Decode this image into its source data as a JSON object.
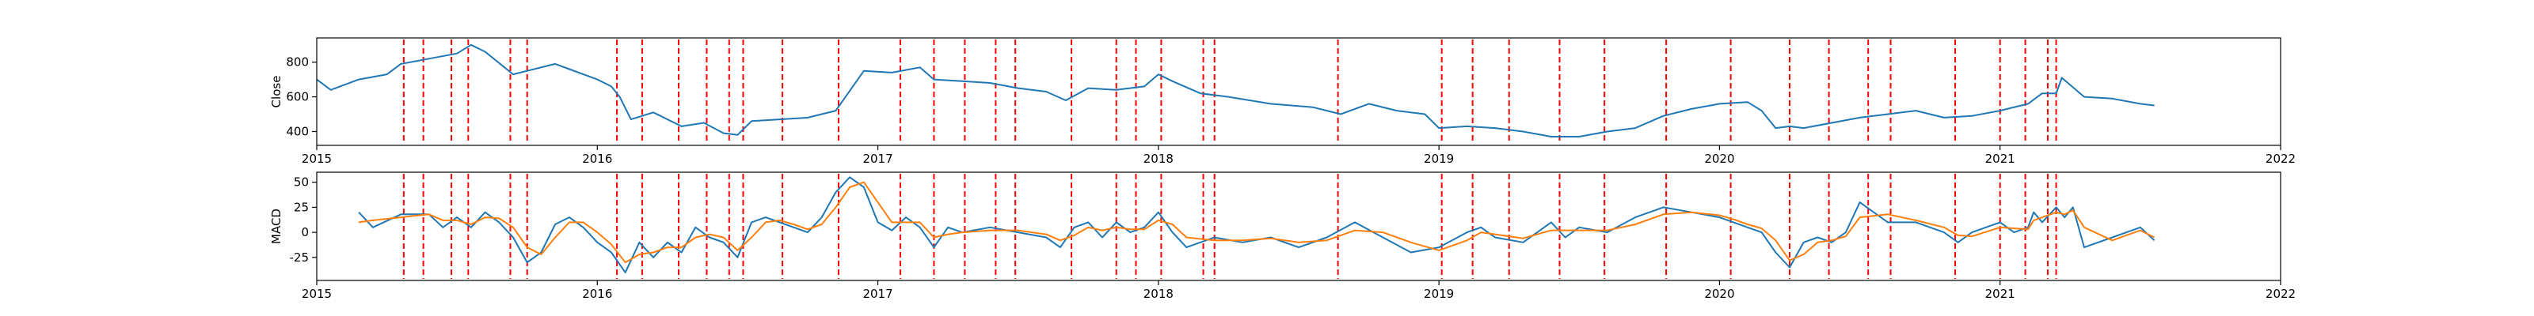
{
  "chart_data": [
    {
      "type": "line",
      "title": "",
      "xlabel": "",
      "ylabel": "Close",
      "x_range": [
        2015.0,
        2022.0
      ],
      "ylim": [
        320,
        940
      ],
      "x_ticks": [
        "2015",
        "2016",
        "2017",
        "2018",
        "2019",
        "2020",
        "2021",
        "2022"
      ],
      "y_ticks": [
        400,
        600,
        800
      ],
      "grid": false,
      "legend": "none",
      "series": [
        {
          "color": "#1f77b4",
          "x": [
            2015.0,
            2015.05,
            2015.15,
            2015.25,
            2015.3,
            2015.4,
            2015.5,
            2015.55,
            2015.6,
            2015.7,
            2015.75,
            2015.85,
            2015.9,
            2016.0,
            2016.05,
            2016.08,
            2016.12,
            2016.2,
            2016.3,
            2016.38,
            2016.45,
            2016.5,
            2016.55,
            2016.65,
            2016.75,
            2016.85,
            2016.95,
            2017.05,
            2017.15,
            2017.2,
            2017.3,
            2017.4,
            2017.5,
            2017.6,
            2017.67,
            2017.75,
            2017.85,
            2017.95,
            2018.0,
            2018.05,
            2018.15,
            2018.25,
            2018.4,
            2018.55,
            2018.65,
            2018.75,
            2018.85,
            2018.95,
            2019.0,
            2019.1,
            2019.2,
            2019.3,
            2019.4,
            2019.5,
            2019.6,
            2019.7,
            2019.8,
            2019.9,
            2020.0,
            2020.1,
            2020.15,
            2020.2,
            2020.25,
            2020.3,
            2020.4,
            2020.5,
            2020.6,
            2020.7,
            2020.8,
            2020.9,
            2021.0,
            2021.1,
            2021.15,
            2021.2,
            2021.22,
            2021.3,
            2021.4,
            2021.5,
            2021.55
          ],
          "y": [
            700,
            640,
            700,
            730,
            790,
            820,
            850,
            900,
            860,
            730,
            750,
            790,
            760,
            700,
            660,
            600,
            470,
            510,
            430,
            450,
            390,
            380,
            460,
            470,
            480,
            520,
            750,
            740,
            770,
            700,
            690,
            680,
            650,
            630,
            580,
            650,
            640,
            660,
            730,
            690,
            620,
            600,
            560,
            540,
            500,
            560,
            520,
            500,
            420,
            430,
            420,
            400,
            370,
            370,
            400,
            420,
            490,
            530,
            560,
            570,
            520,
            420,
            430,
            420,
            450,
            480,
            500,
            520,
            480,
            490,
            520,
            560,
            620,
            620,
            710,
            600,
            590,
            560,
            550
          ]
        }
      ],
      "vlines": {
        "color": "#ff0000",
        "style": "dashed",
        "x": [
          2015.31,
          2015.38,
          2015.48,
          2015.54,
          2015.69,
          2015.75,
          2016.07,
          2016.16,
          2016.29,
          2016.39,
          2016.47,
          2016.52,
          2016.66,
          2016.86,
          2017.08,
          2017.2,
          2017.31,
          2017.42,
          2017.49,
          2017.69,
          2017.85,
          2017.92,
          2018.01,
          2018.16,
          2018.2,
          2018.64,
          2019.01,
          2019.12,
          2019.25,
          2019.43,
          2019.59,
          2019.81,
          2020.04,
          2020.25,
          2020.39,
          2020.53,
          2020.61,
          2020.84,
          2021.0,
          2021.09,
          2021.17,
          2021.2
        ]
      }
    },
    {
      "type": "line",
      "title": "",
      "xlabel": "",
      "ylabel": "MACD",
      "x_range": [
        2015.0,
        2022.0
      ],
      "ylim": [
        -48,
        60
      ],
      "x_ticks": [
        "2015",
        "2016",
        "2017",
        "2018",
        "2019",
        "2020",
        "2021",
        "2022"
      ],
      "y_ticks": [
        -25,
        0,
        25,
        50
      ],
      "grid": false,
      "legend": "none",
      "series": [
        {
          "color": "#1f77b4",
          "x": [
            2015.15,
            2015.2,
            2015.3,
            2015.4,
            2015.45,
            2015.5,
            2015.55,
            2015.6,
            2015.65,
            2015.7,
            2015.75,
            2015.8,
            2015.85,
            2015.9,
            2015.95,
            2016.0,
            2016.05,
            2016.1,
            2016.15,
            2016.2,
            2016.25,
            2016.3,
            2016.35,
            2016.4,
            2016.45,
            2016.5,
            2016.55,
            2016.6,
            2016.65,
            2016.7,
            2016.75,
            2016.8,
            2016.85,
            2016.9,
            2016.95,
            2017.0,
            2017.05,
            2017.1,
            2017.15,
            2017.2,
            2017.25,
            2017.3,
            2017.4,
            2017.5,
            2017.6,
            2017.65,
            2017.7,
            2017.75,
            2017.8,
            2017.85,
            2017.9,
            2017.95,
            2018.0,
            2018.05,
            2018.1,
            2018.2,
            2018.3,
            2018.4,
            2018.5,
            2018.6,
            2018.7,
            2018.8,
            2018.9,
            2019.0,
            2019.1,
            2019.15,
            2019.2,
            2019.3,
            2019.4,
            2019.45,
            2019.5,
            2019.6,
            2019.7,
            2019.8,
            2019.9,
            2020.0,
            2020.05,
            2020.1,
            2020.15,
            2020.2,
            2020.25,
            2020.3,
            2020.35,
            2020.4,
            2020.45,
            2020.5,
            2020.6,
            2020.7,
            2020.8,
            2020.85,
            2020.9,
            2021.0,
            2021.05,
            2021.1,
            2021.12,
            2021.15,
            2021.2,
            2021.23,
            2021.26,
            2021.3,
            2021.4,
            2021.5,
            2021.55
          ],
          "y": [
            20,
            5,
            18,
            18,
            5,
            15,
            5,
            20,
            10,
            -5,
            -30,
            -20,
            8,
            15,
            5,
            -10,
            -20,
            -40,
            -10,
            -25,
            -10,
            -20,
            5,
            -5,
            -10,
            -25,
            10,
            15,
            10,
            5,
            0,
            15,
            40,
            55,
            45,
            10,
            2,
            15,
            5,
            -15,
            5,
            0,
            5,
            0,
            -5,
            -15,
            5,
            10,
            -5,
            10,
            0,
            5,
            20,
            0,
            -15,
            -5,
            -10,
            -5,
            -15,
            -5,
            10,
            -5,
            -20,
            -15,
            0,
            5,
            -5,
            -10,
            10,
            -5,
            5,
            0,
            15,
            25,
            20,
            15,
            10,
            5,
            0,
            -20,
            -35,
            -10,
            -5,
            -10,
            0,
            30,
            10,
            10,
            0,
            -10,
            0,
            10,
            0,
            5,
            20,
            10,
            25,
            15,
            25,
            -15,
            -5,
            5,
            -8
          ]
        },
        {
          "color": "#ff7f0e",
          "x": [
            2015.15,
            2015.2,
            2015.3,
            2015.4,
            2015.45,
            2015.5,
            2015.55,
            2015.6,
            2015.65,
            2015.7,
            2015.75,
            2015.8,
            2015.85,
            2015.9,
            2015.95,
            2016.0,
            2016.05,
            2016.1,
            2016.15,
            2016.2,
            2016.25,
            2016.3,
            2016.35,
            2016.4,
            2016.45,
            2016.5,
            2016.55,
            2016.6,
            2016.65,
            2016.7,
            2016.75,
            2016.8,
            2016.85,
            2016.9,
            2016.95,
            2017.0,
            2017.05,
            2017.1,
            2017.15,
            2017.2,
            2017.25,
            2017.3,
            2017.4,
            2017.5,
            2017.6,
            2017.65,
            2017.7,
            2017.75,
            2017.8,
            2017.85,
            2017.9,
            2017.95,
            2018.0,
            2018.05,
            2018.1,
            2018.2,
            2018.3,
            2018.4,
            2018.5,
            2018.6,
            2018.7,
            2018.8,
            2018.9,
            2019.0,
            2019.1,
            2019.15,
            2019.2,
            2019.3,
            2019.4,
            2019.45,
            2019.5,
            2019.6,
            2019.7,
            2019.8,
            2019.9,
            2020.0,
            2020.05,
            2020.1,
            2020.15,
            2020.2,
            2020.25,
            2020.3,
            2020.35,
            2020.4,
            2020.45,
            2020.5,
            2020.6,
            2020.7,
            2020.8,
            2020.85,
            2020.9,
            2021.0,
            2021.05,
            2021.1,
            2021.12,
            2021.15,
            2021.2,
            2021.23,
            2021.26,
            2021.3,
            2021.4,
            2021.5,
            2021.55
          ],
          "y": [
            10,
            12,
            15,
            18,
            12,
            12,
            8,
            15,
            14,
            5,
            -15,
            -22,
            -5,
            10,
            10,
            0,
            -12,
            -30,
            -22,
            -20,
            -15,
            -15,
            -5,
            -2,
            -5,
            -18,
            -5,
            10,
            12,
            8,
            3,
            8,
            25,
            45,
            50,
            30,
            10,
            10,
            10,
            -5,
            -2,
            0,
            2,
            2,
            -2,
            -8,
            -3,
            5,
            2,
            5,
            3,
            3,
            12,
            8,
            -5,
            -8,
            -8,
            -6,
            -10,
            -8,
            2,
            0,
            -10,
            -18,
            -8,
            0,
            -2,
            -6,
            2,
            2,
            2,
            2,
            8,
            18,
            20,
            17,
            13,
            8,
            4,
            -8,
            -28,
            -22,
            -10,
            -8,
            -4,
            15,
            18,
            12,
            5,
            -3,
            -4,
            5,
            4,
            3,
            12,
            15,
            20,
            18,
            22,
            5,
            -8,
            2,
            -5
          ]
        }
      ],
      "vlines": {
        "color": "#ff0000",
        "style": "dashed",
        "x": [
          2015.31,
          2015.38,
          2015.48,
          2015.54,
          2015.69,
          2015.75,
          2016.07,
          2016.16,
          2016.29,
          2016.39,
          2016.47,
          2016.52,
          2016.66,
          2016.86,
          2017.08,
          2017.2,
          2017.31,
          2017.42,
          2017.49,
          2017.69,
          2017.85,
          2017.92,
          2018.01,
          2018.16,
          2018.2,
          2018.64,
          2019.01,
          2019.12,
          2019.25,
          2019.43,
          2019.59,
          2019.81,
          2020.04,
          2020.25,
          2020.39,
          2020.53,
          2020.61,
          2020.84,
          2021.0,
          2021.09,
          2021.17,
          2021.2
        ]
      }
    }
  ]
}
